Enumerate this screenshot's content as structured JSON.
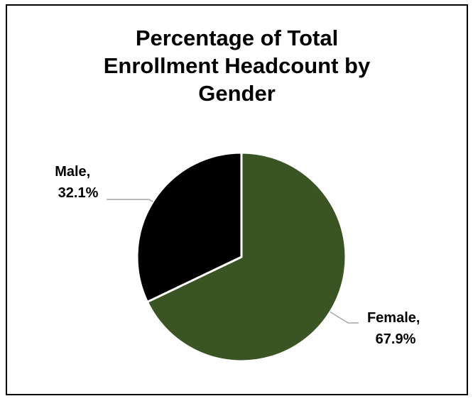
{
  "chart_data": {
    "type": "pie",
    "title_lines": [
      "Percentage of Total",
      "Enrollment Headcount by",
      "Gender"
    ],
    "categories": [
      "Female",
      "Male"
    ],
    "values": [
      67.9,
      32.1
    ],
    "unit": "%",
    "colors": [
      "#3b5424",
      "#000000"
    ],
    "slice_border_color": "#ffffff",
    "labels": [
      {
        "line1": "Female,",
        "line2": "67.9%"
      },
      {
        "line1": "Male,",
        "line2": "32.1%"
      }
    ],
    "legend": "none",
    "start_angle": "12 o'clock",
    "direction": "clockwise"
  }
}
